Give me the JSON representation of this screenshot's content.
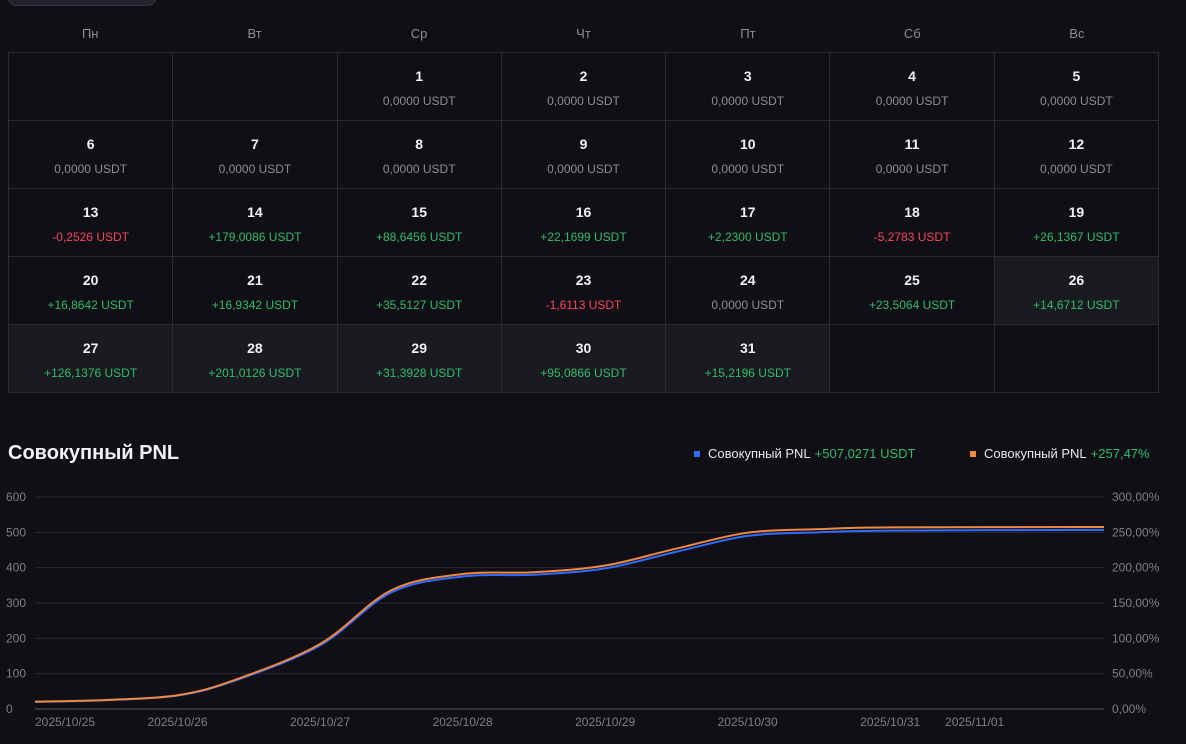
{
  "calendar": {
    "weekdays": [
      "Пн",
      "Вт",
      "Ср",
      "Чт",
      "Пт",
      "Сб",
      "Вс"
    ],
    "days": [
      {
        "day": "",
        "value": "",
        "tone": ""
      },
      {
        "day": "",
        "value": "",
        "tone": ""
      },
      {
        "day": "1",
        "value": "0,0000 USDT",
        "tone": "zero"
      },
      {
        "day": "2",
        "value": "0,0000 USDT",
        "tone": "zero"
      },
      {
        "day": "3",
        "value": "0,0000 USDT",
        "tone": "zero"
      },
      {
        "day": "4",
        "value": "0,0000 USDT",
        "tone": "zero"
      },
      {
        "day": "5",
        "value": "0,0000 USDT",
        "tone": "zero"
      },
      {
        "day": "6",
        "value": "0,0000 USDT",
        "tone": "zero"
      },
      {
        "day": "7",
        "value": "0,0000 USDT",
        "tone": "zero"
      },
      {
        "day": "8",
        "value": "0,0000 USDT",
        "tone": "zero"
      },
      {
        "day": "9",
        "value": "0,0000 USDT",
        "tone": "zero"
      },
      {
        "day": "10",
        "value": "0,0000 USDT",
        "tone": "zero"
      },
      {
        "day": "11",
        "value": "0,0000 USDT",
        "tone": "zero"
      },
      {
        "day": "12",
        "value": "0,0000 USDT",
        "tone": "zero"
      },
      {
        "day": "13",
        "value": "-0,2526 USDT",
        "tone": "neg"
      },
      {
        "day": "14",
        "value": "+179,0086 USDT",
        "tone": "pos"
      },
      {
        "day": "15",
        "value": "+88,6456 USDT",
        "tone": "pos"
      },
      {
        "day": "16",
        "value": "+22,1699 USDT",
        "tone": "pos"
      },
      {
        "day": "17",
        "value": "+2,2300 USDT",
        "tone": "pos"
      },
      {
        "day": "18",
        "value": "-5,2783 USDT",
        "tone": "neg"
      },
      {
        "day": "19",
        "value": "+26,1367 USDT",
        "tone": "pos"
      },
      {
        "day": "20",
        "value": "+16,8642 USDT",
        "tone": "pos"
      },
      {
        "day": "21",
        "value": "+16,9342 USDT",
        "tone": "pos"
      },
      {
        "day": "22",
        "value": "+35,5127 USDT",
        "tone": "pos"
      },
      {
        "day": "23",
        "value": "-1,6113 USDT",
        "tone": "neg"
      },
      {
        "day": "24",
        "value": "0,0000 USDT",
        "tone": "zero"
      },
      {
        "day": "25",
        "value": "+23,5064 USDT",
        "tone": "pos"
      },
      {
        "day": "26",
        "value": "+14,6712 USDT",
        "tone": "pos",
        "shaded": true
      },
      {
        "day": "27",
        "value": "+126,1376 USDT",
        "tone": "pos",
        "shaded": true
      },
      {
        "day": "28",
        "value": "+201,0126 USDT",
        "tone": "pos",
        "shaded": true
      },
      {
        "day": "29",
        "value": "+31,3928 USDT",
        "tone": "pos",
        "shaded": true
      },
      {
        "day": "30",
        "value": "+95,0866 USDT",
        "tone": "pos",
        "shaded": true
      },
      {
        "day": "31",
        "value": "+15,2196 USDT",
        "tone": "pos",
        "shaded": true
      },
      {
        "day": "",
        "value": "",
        "tone": ""
      },
      {
        "day": "",
        "value": "",
        "tone": ""
      }
    ]
  },
  "pnl": {
    "title": "Совокупный PNL",
    "legend": [
      {
        "label": "Совокупный PNL",
        "value": "+507,0271 USDT",
        "color": "#2f6bff"
      },
      {
        "label": "Совокупный PNL",
        "value": "+257,47%",
        "color": "#f0883e"
      }
    ]
  },
  "colors": {
    "background": "#0f0f15",
    "positive": "#2ebd6b",
    "negative": "#f6465d",
    "neutral": "#8c8d96"
  },
  "chart_data": {
    "type": "line",
    "x_ticks": [
      "2025/10/25",
      "2025/10/26",
      "2025/10/27",
      "2025/10/28",
      "2025/10/29",
      "2025/10/30",
      "2025/10/31",
      "2025/11/01"
    ],
    "y_left_ticks": [
      "600",
      "500",
      "400",
      "300",
      "200",
      "100",
      "0"
    ],
    "y_right_ticks": [
      "300,00%",
      "250,00%",
      "200,00%",
      "150,00%",
      "100,00%",
      "50,00%",
      "0,00%"
    ],
    "ylim_left": [
      0,
      600
    ],
    "ylim_right": [
      0,
      300
    ],
    "grid": true,
    "series": [
      {
        "name": "Совокупный PNL",
        "axis": "left",
        "color": "#2f6bff",
        "x": [
          0,
          0.5,
          1,
          1.4,
          2,
          2.5,
          3,
          3.5,
          4,
          4.5,
          5,
          5.5,
          6,
          7.5
        ],
        "values": [
          20,
          25,
          38,
          80,
          180,
          330,
          375,
          380,
          398,
          445,
          490,
          500,
          505,
          507
        ]
      },
      {
        "name": "Совокупный PNL",
        "axis": "right",
        "color": "#f0883e",
        "x": [
          0,
          0.5,
          1,
          1.4,
          2,
          2.5,
          3,
          3.5,
          4,
          4.5,
          5,
          5.5,
          6,
          7.5
        ],
        "values": [
          10.5,
          12.8,
          19.5,
          41,
          92,
          168,
          191,
          193.5,
          203,
          227,
          249.5,
          254.5,
          257,
          257.47
        ]
      }
    ]
  }
}
